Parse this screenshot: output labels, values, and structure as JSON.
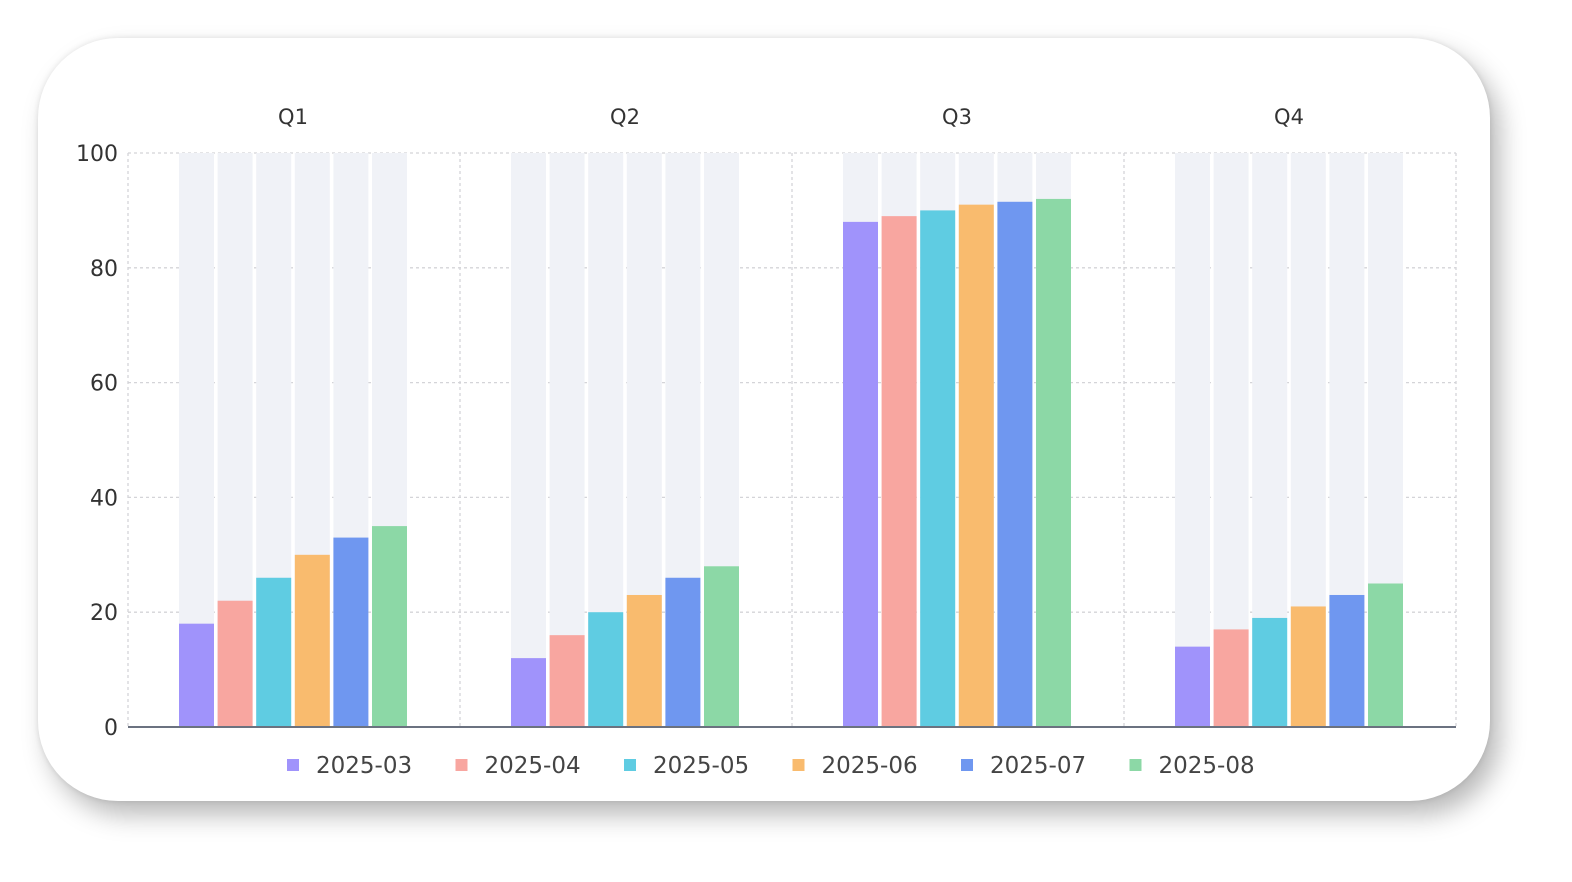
{
  "chart_data": {
    "type": "bar",
    "categories": [
      "Q1",
      "Q2",
      "Q3",
      "Q4"
    ],
    "series": [
      {
        "name": "2025-03",
        "color": "#a093fb",
        "values": [
          18,
          12,
          88,
          14
        ]
      },
      {
        "name": "2025-04",
        "color": "#f8a6a0",
        "values": [
          22,
          16,
          89,
          17
        ]
      },
      {
        "name": "2025-05",
        "color": "#5fcce2",
        "values": [
          26,
          20,
          90,
          19
        ]
      },
      {
        "name": "2025-06",
        "color": "#f9bb6e",
        "values": [
          30,
          23,
          91,
          21
        ]
      },
      {
        "name": "2025-07",
        "color": "#6f97f0",
        "values": [
          33,
          26,
          91.5,
          23
        ]
      },
      {
        "name": "2025-08",
        "color": "#8cd8a6",
        "values": [
          35,
          28,
          92,
          25
        ]
      }
    ],
    "ylim": [
      0,
      100
    ],
    "yticks": [
      0,
      20,
      40,
      60,
      80,
      100
    ],
    "grid": true,
    "background_bars": true,
    "category_labels_position": "top",
    "legend_position": "bottom"
  }
}
